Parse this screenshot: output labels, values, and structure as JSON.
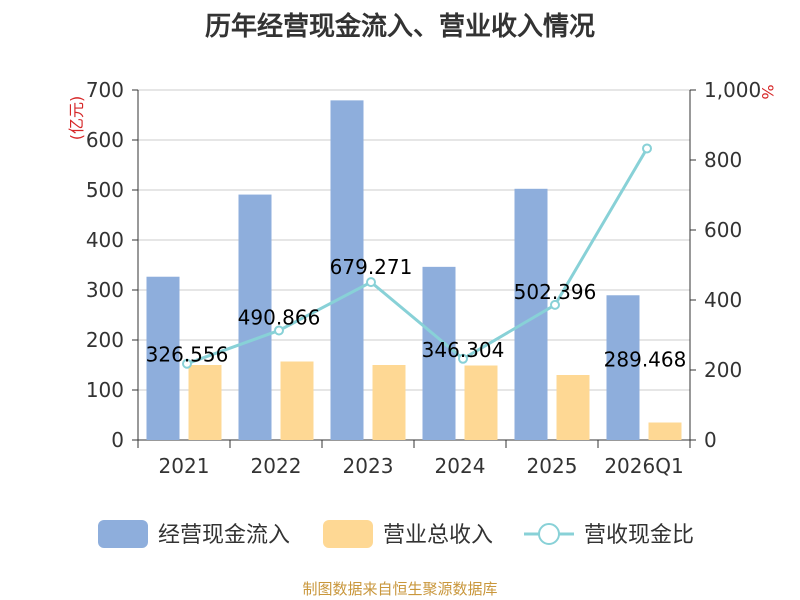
{
  "chart_data": {
    "type": "bar",
    "title": "历年经营现金流入、营业收入情况",
    "categories": [
      "2021",
      "2022",
      "2023",
      "2024",
      "2025",
      "2026Q1"
    ],
    "y_left": {
      "unit": "(亿元)",
      "ylim": [
        0,
        700
      ],
      "ticks": [
        "0",
        "100",
        "200",
        "300",
        "400",
        "500",
        "600",
        "700"
      ]
    },
    "y_right": {
      "unit": "%",
      "ylim": [
        0,
        1000
      ],
      "ticks": [
        "0",
        "200",
        "400",
        "600",
        "800",
        "1,000"
      ]
    },
    "grid": true,
    "legend_position": "bottom",
    "series": [
      {
        "name": "经营现金流入",
        "kind": "bar",
        "axis": "left",
        "color": "#8eaedc",
        "values": [
          326.556,
          490.866,
          679.271,
          346.304,
          502.396,
          289.468
        ]
      },
      {
        "name": "营业总收入",
        "kind": "bar",
        "axis": "left",
        "color": "#fed894",
        "values": [
          150,
          157,
          150,
          149,
          130,
          35
        ]
      },
      {
        "name": "营收现金比",
        "kind": "line",
        "axis": "right",
        "color": "#88d1d7",
        "values": [
          218,
          313,
          451,
          232,
          386,
          833
        ]
      }
    ],
    "data_labels": [
      "326.556",
      "490.866",
      "679.271",
      "346.304",
      "502.396",
      "289.468"
    ]
  },
  "footer": {
    "source": "制图数据来自恒生聚源数据库"
  }
}
